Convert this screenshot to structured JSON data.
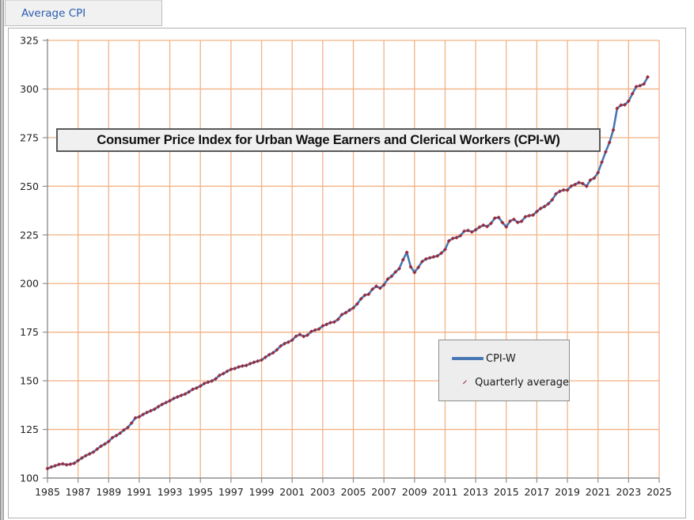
{
  "tab": {
    "label": "Average CPI"
  },
  "chart": {
    "title": "Consumer Price Index for Urban Wage Earners and Clerical Workers (CPI-W)",
    "legend": {
      "entries": [
        {
          "label": "CPI-W",
          "marker": "line"
        },
        {
          "label": "Quarterly average",
          "marker": "diamond"
        }
      ]
    },
    "colors": {
      "line": "#4977B3",
      "marker": "#9E2B3B",
      "grid": "#F2B285",
      "axis": "#8f8f8f",
      "tick_label": "#222222",
      "plot_bg": "#ffffff"
    }
  },
  "chart_data": {
    "type": "line",
    "title": "Consumer Price Index for Urban Wage Earners and Clerical Workers (CPI-W)",
    "xlabel": "",
    "ylabel": "",
    "xlim": [
      1985,
      2025
    ],
    "ylim": [
      100,
      325
    ],
    "x_ticks": [
      1985,
      1987,
      1989,
      1991,
      1993,
      1995,
      1997,
      1999,
      2001,
      2003,
      2005,
      2007,
      2009,
      2011,
      2013,
      2015,
      2017,
      2019,
      2021,
      2023,
      2025
    ],
    "y_ticks": [
      100,
      125,
      150,
      175,
      200,
      225,
      250,
      275,
      300,
      325
    ],
    "grid": true,
    "legend_position": "center-right",
    "x_start": 1985.0,
    "x_step": 0.25,
    "series": [
      {
        "name": "CPI-W",
        "type": "line",
        "color": "#4977B3",
        "values": [
          104.9,
          105.7,
          106.3,
          107.0,
          107.3,
          106.8,
          107.1,
          107.6,
          109.0,
          110.3,
          111.5,
          112.4,
          113.4,
          114.9,
          116.4,
          117.5,
          118.8,
          120.8,
          121.8,
          123.1,
          124.7,
          126.0,
          128.3,
          130.9,
          131.5,
          132.7,
          133.7,
          134.6,
          135.4,
          136.7,
          137.9,
          138.8,
          139.7,
          140.9,
          141.7,
          142.5,
          143.2,
          144.3,
          145.6,
          146.3,
          147.3,
          148.6,
          149.3,
          149.9,
          151.0,
          152.8,
          153.7,
          154.9,
          155.9,
          156.3,
          157.1,
          157.6,
          157.9,
          158.8,
          159.5,
          160.1,
          160.7,
          162.1,
          163.4,
          164.4,
          165.9,
          167.9,
          169.1,
          169.9,
          170.9,
          172.9,
          173.8,
          172.8,
          173.5,
          175.3,
          176.1,
          176.6,
          178.2,
          179.0,
          179.9,
          180.2,
          181.6,
          184.0,
          185.0,
          186.3,
          187.5,
          189.5,
          192.1,
          194.0,
          194.5,
          197.1,
          198.6,
          197.6,
          199.3,
          202.3,
          203.7,
          205.9,
          207.6,
          212.2,
          216.0,
          208.6,
          205.7,
          208.3,
          211.3,
          212.6,
          213.2,
          213.7,
          214.2,
          215.6,
          217.5,
          221.9,
          223.2,
          223.6,
          224.6,
          226.9,
          227.3,
          226.5,
          227.6,
          229.0,
          230.0,
          229.3,
          230.9,
          233.6,
          234.0,
          231.3,
          229.1,
          232.1,
          233.0,
          231.4,
          232.0,
          234.3,
          234.9,
          235.2,
          237.0,
          238.6,
          239.6,
          241.0,
          243.0,
          246.1,
          247.4,
          248.1,
          248.0,
          250.1,
          250.9,
          251.9,
          251.4,
          250.0,
          253.2,
          254.2,
          257.0,
          262.4,
          267.7,
          272.5,
          278.9,
          290.0,
          291.7,
          291.9,
          293.8,
          297.6,
          301.2,
          301.7,
          302.6,
          306.2
        ]
      },
      {
        "name": "Quarterly average",
        "type": "scatter",
        "marker": "diamond",
        "color": "#9E2B3B",
        "values_ref": "CPI-W"
      }
    ]
  }
}
